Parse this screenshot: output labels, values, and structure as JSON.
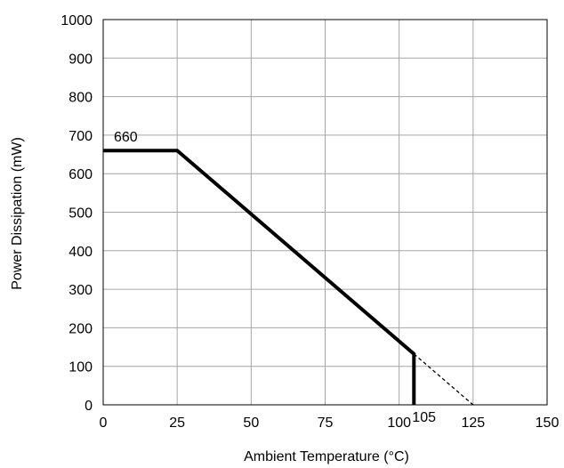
{
  "chart_data": {
    "type": "line",
    "title": "",
    "xlabel": "Ambient Temperature (°C)",
    "ylabel": "Power Dissipation (mW)",
    "xlim": [
      0,
      150
    ],
    "ylim": [
      0,
      1000
    ],
    "x_ticks": [
      "0",
      "25",
      "50",
      "75",
      "100",
      "125",
      "150"
    ],
    "y_ticks": [
      "0",
      "100",
      "200",
      "300",
      "400",
      "500",
      "600",
      "700",
      "800",
      "900",
      "1000"
    ],
    "grid": true,
    "series": [
      {
        "style": "solid",
        "x": [
          0,
          25,
          105,
          105
        ],
        "y": [
          660,
          660,
          132,
          0
        ]
      },
      {
        "style": "dashed",
        "x": [
          105,
          125
        ],
        "y": [
          132,
          0
        ]
      }
    ],
    "annotations": [
      {
        "text": "660",
        "x": 0,
        "y": 660
      },
      {
        "text": "105",
        "x": 105,
        "y": 0
      }
    ]
  }
}
